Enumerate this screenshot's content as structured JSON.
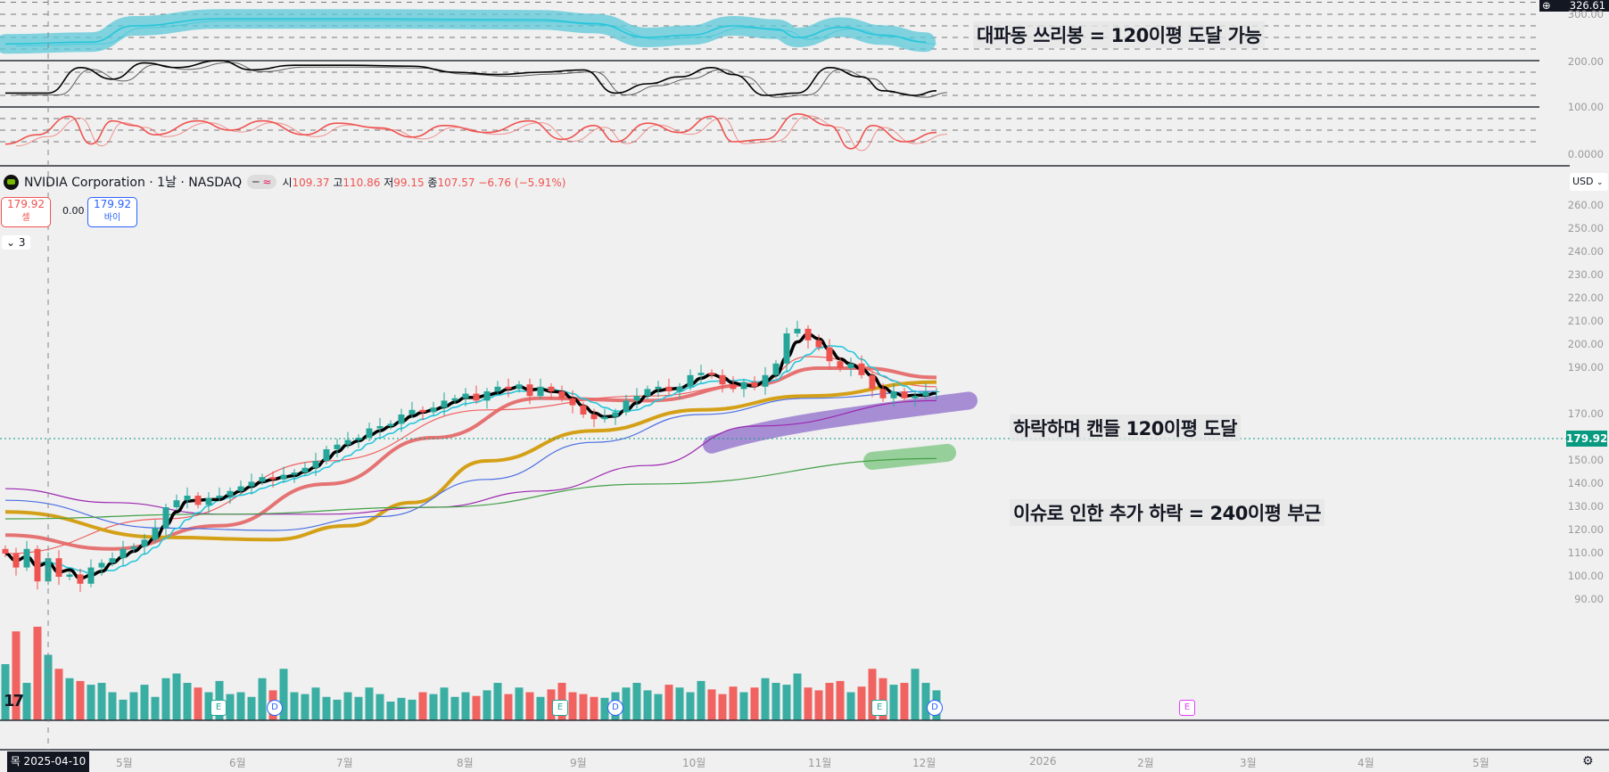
{
  "header": {
    "symbol": "NVIDIA Corporation · 1날 · NASDAQ",
    "o_label": "시",
    "o": "109.37",
    "h_label": "고",
    "h": "110.86",
    "l_label": "저",
    "l": "99.15",
    "c_label": "종",
    "c": "107.57",
    "change": "−6.76 (−5.91%)"
  },
  "trade": {
    "sell_price": "179.92",
    "sell_label": "셀",
    "spread": "0.00",
    "buy_price": "179.92",
    "buy_label": "바이"
  },
  "collapse": {
    "label": "3"
  },
  "currency": "USD",
  "indicator_pane": {
    "top_value": "326.61",
    "axis": [
      "300.00",
      "200.00",
      "100.00",
      "0.0000"
    ]
  },
  "annotations": {
    "top": "대파동 쓰리봉 = 120이평 도달 가능",
    "mid": "하락하며 캔들 120이평 도달",
    "low": "이슈로 인한 추가 하락 = 240이평 부근"
  },
  "current_price": "179.92",
  "crosshair_date": "목 2025-04-10",
  "time_axis": [
    "5월",
    "6월",
    "7월",
    "8월",
    "9월",
    "10월",
    "11월",
    "12월",
    "2026",
    "2월",
    "3월",
    "4월",
    "5월"
  ],
  "price_axis": [
    "260.00",
    "250.00",
    "240.00",
    "230.00",
    "220.00",
    "210.00",
    "200.00",
    "190.00",
    "170.00",
    "160.00",
    "150.00",
    "140.00",
    "130.00",
    "120.00",
    "110.00",
    "100.00",
    "90.00"
  ],
  "events": [
    {
      "t": "E"
    },
    {
      "t": "D"
    },
    {
      "t": "E"
    },
    {
      "t": "D"
    },
    {
      "t": "E"
    },
    {
      "t": "D"
    },
    {
      "t": "E"
    }
  ],
  "colors": {
    "up": "#26a69a",
    "down": "#ef5350",
    "accent": "#089981"
  },
  "chart_data": {
    "type": "candlestick",
    "ylim": [
      85,
      262
    ],
    "closes": [
      110,
      104,
      112,
      98,
      108,
      100,
      101,
      97,
      104,
      106,
      108,
      112,
      113,
      116,
      121,
      130,
      133,
      135,
      131,
      134,
      135,
      137,
      139,
      141,
      143,
      142,
      144,
      145,
      147,
      150,
      155,
      157,
      159,
      160,
      164,
      165,
      166,
      170,
      172,
      171,
      173,
      176,
      177,
      179,
      176,
      180,
      182,
      181,
      183,
      178,
      182,
      180,
      177,
      174,
      170,
      168,
      169,
      171,
      176,
      178,
      181,
      182,
      180,
      182,
      187,
      188,
      187,
      183,
      181,
      184,
      182,
      187,
      192,
      205,
      207,
      202,
      199,
      193,
      190,
      192,
      187,
      181,
      177,
      180,
      177,
      178,
      180,
      180
    ],
    "volumes": [
      60,
      95,
      40,
      100,
      70,
      55,
      45,
      42,
      38,
      40,
      30,
      22,
      30,
      38,
      25,
      45,
      50,
      40,
      35,
      30,
      42,
      28,
      30,
      25,
      45,
      32,
      55,
      30,
      28,
      35,
      25,
      22,
      30,
      25,
      35,
      28,
      20,
      24,
      22,
      30,
      28,
      35,
      25,
      30,
      26,
      32,
      40,
      28,
      35,
      30,
      25,
      33,
      40,
      30,
      28,
      25,
      24,
      30,
      35,
      40,
      32,
      28,
      38,
      35,
      30,
      42,
      33,
      28,
      36,
      30,
      35,
      45,
      40,
      38,
      50,
      35,
      32,
      40,
      42,
      30,
      36,
      55,
      45,
      38,
      40,
      55,
      40,
      32
    ],
    "moving_averages": [
      {
        "name": "MA20",
        "color": "#e57373",
        "points": [
          [
            0,
            118
          ],
          [
            10,
            112
          ],
          [
            20,
            122
          ],
          [
            30,
            140
          ],
          [
            40,
            160
          ],
          [
            50,
            177
          ],
          [
            60,
            176
          ],
          [
            70,
            183
          ],
          [
            76,
            190
          ],
          [
            80,
            190
          ],
          [
            87,
            186
          ]
        ]
      },
      {
        "name": "MA10",
        "color": "#f06060",
        "points": [
          [
            0,
            110
          ],
          [
            15,
            125
          ],
          [
            30,
            150
          ],
          [
            45,
            172
          ],
          [
            60,
            178
          ],
          [
            70,
            183
          ],
          [
            75,
            195
          ],
          [
            87,
            182
          ]
        ]
      },
      {
        "name": "MA60",
        "color": "#d4a017",
        "points": [
          [
            0,
            128
          ],
          [
            15,
            117
          ],
          [
            25,
            116
          ],
          [
            32,
            122
          ],
          [
            38,
            132
          ],
          [
            45,
            150
          ],
          [
            55,
            163
          ],
          [
            65,
            172
          ],
          [
            75,
            178
          ],
          [
            87,
            184
          ]
        ]
      },
      {
        "name": "MA90",
        "color": "#4a6fe3",
        "points": [
          [
            0,
            133
          ],
          [
            15,
            121
          ],
          [
            25,
            120
          ],
          [
            35,
            126
          ],
          [
            45,
            142
          ],
          [
            55,
            158
          ],
          [
            65,
            170
          ],
          [
            75,
            177
          ],
          [
            87,
            180
          ]
        ]
      },
      {
        "name": "MA120",
        "color": "#9c27b0",
        "points": [
          [
            0,
            138
          ],
          [
            10,
            132
          ],
          [
            20,
            127
          ],
          [
            30,
            127
          ],
          [
            40,
            130
          ],
          [
            50,
            137
          ],
          [
            60,
            148
          ],
          [
            70,
            165
          ],
          [
            87,
            176
          ]
        ]
      },
      {
        "name": "MA240",
        "color": "#43a047",
        "points": [
          [
            0,
            125
          ],
          [
            20,
            127
          ],
          [
            40,
            130
          ],
          [
            60,
            140
          ],
          [
            87,
            151
          ]
        ]
      }
    ],
    "indicators": [
      {
        "name": "wave",
        "color": "#26c6da",
        "points": [
          [
            0,
            236
          ],
          [
            8,
            240
          ],
          [
            12,
            275
          ],
          [
            20,
            290
          ],
          [
            35,
            290
          ],
          [
            50,
            288
          ],
          [
            55,
            280
          ],
          [
            60,
            250
          ],
          [
            64,
            255
          ],
          [
            68,
            275
          ],
          [
            72,
            268
          ],
          [
            74,
            250
          ],
          [
            78,
            272
          ],
          [
            82,
            255
          ],
          [
            86,
            240
          ]
        ]
      },
      {
        "name": "osc1",
        "color": "#000000",
        "points": [
          [
            0,
            130
          ],
          [
            4,
            130
          ],
          [
            7,
            185
          ],
          [
            10,
            160
          ],
          [
            13,
            195
          ],
          [
            16,
            185
          ],
          [
            20,
            200
          ],
          [
            23,
            180
          ],
          [
            27,
            190
          ],
          [
            32,
            190
          ],
          [
            38,
            188
          ],
          [
            42,
            175
          ],
          [
            46,
            170
          ],
          [
            50,
            175
          ],
          [
            54,
            180
          ],
          [
            57,
            130
          ],
          [
            60,
            150
          ],
          [
            63,
            165
          ],
          [
            66,
            185
          ],
          [
            68,
            170
          ],
          [
            71,
            125
          ],
          [
            74,
            130
          ],
          [
            77,
            185
          ],
          [
            80,
            165
          ],
          [
            82,
            135
          ],
          [
            85,
            125
          ],
          [
            87,
            135
          ]
        ]
      },
      {
        "name": "osc2",
        "color": "#ef5350",
        "points": [
          [
            0,
            20
          ],
          [
            3,
            40
          ],
          [
            6,
            80
          ],
          [
            8,
            20
          ],
          [
            10,
            70
          ],
          [
            12,
            60
          ],
          [
            14,
            40
          ],
          [
            18,
            70
          ],
          [
            21,
            50
          ],
          [
            24,
            70
          ],
          [
            28,
            40
          ],
          [
            31,
            65
          ],
          [
            35,
            55
          ],
          [
            38,
            35
          ],
          [
            41,
            60
          ],
          [
            45,
            45
          ],
          [
            49,
            70
          ],
          [
            52,
            30
          ],
          [
            55,
            60
          ],
          [
            57,
            25
          ],
          [
            60,
            65
          ],
          [
            63,
            45
          ],
          [
            66,
            80
          ],
          [
            68,
            25
          ],
          [
            71,
            30
          ],
          [
            74,
            85
          ],
          [
            77,
            60
          ],
          [
            79,
            10
          ],
          [
            81,
            60
          ],
          [
            84,
            25
          ],
          [
            87,
            45
          ]
        ]
      }
    ]
  }
}
